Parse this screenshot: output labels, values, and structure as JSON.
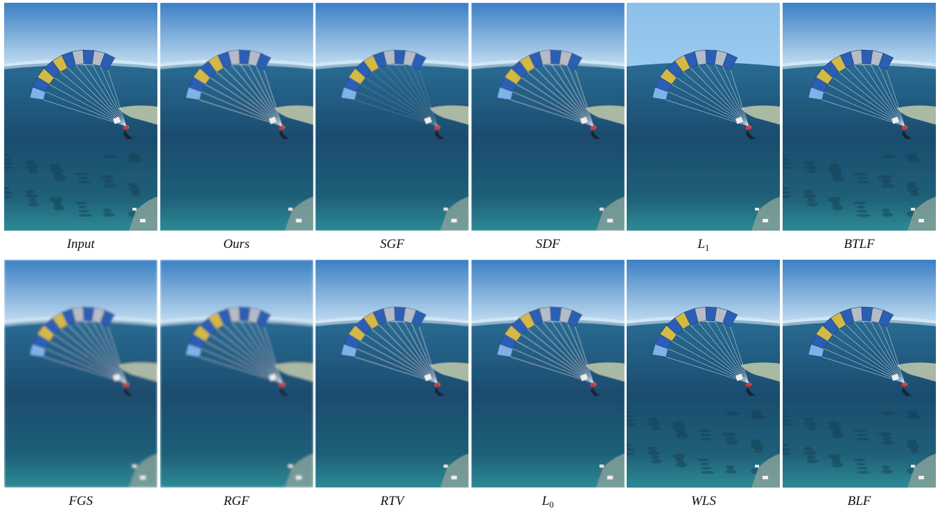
{
  "figure": {
    "rows": [
      [
        {
          "label": "Input",
          "variant": "input"
        },
        {
          "label": "Ours",
          "variant": "smooth"
        },
        {
          "label": "SGF",
          "variant": "sgf"
        },
        {
          "label": "SDF",
          "variant": "smooth"
        },
        {
          "label": "L",
          "sub": "1",
          "variant": "l1"
        },
        {
          "label": "BTLF",
          "variant": "input"
        }
      ],
      [
        {
          "label": "FGS",
          "variant": "blur"
        },
        {
          "label": "RGF",
          "variant": "blur"
        },
        {
          "label": "RTV",
          "variant": "smooth"
        },
        {
          "label": "L",
          "sub": "0",
          "variant": "l0"
        },
        {
          "label": "WLS",
          "variant": "input"
        },
        {
          "label": "BLF",
          "variant": "input"
        }
      ]
    ]
  },
  "colors": {
    "sky_top": "#3b7fc4",
    "sky_horizon": "#cfe6f5",
    "sea_top": "#2a6c94",
    "sea_mid": "#1a4c6e",
    "sea_bottom": "#2d8a96",
    "canopy_blue": "#2b5fb3",
    "canopy_light": "#7fb2e8",
    "canopy_yellow": "#d3b945",
    "canopy_grey": "#b5bcc6"
  }
}
